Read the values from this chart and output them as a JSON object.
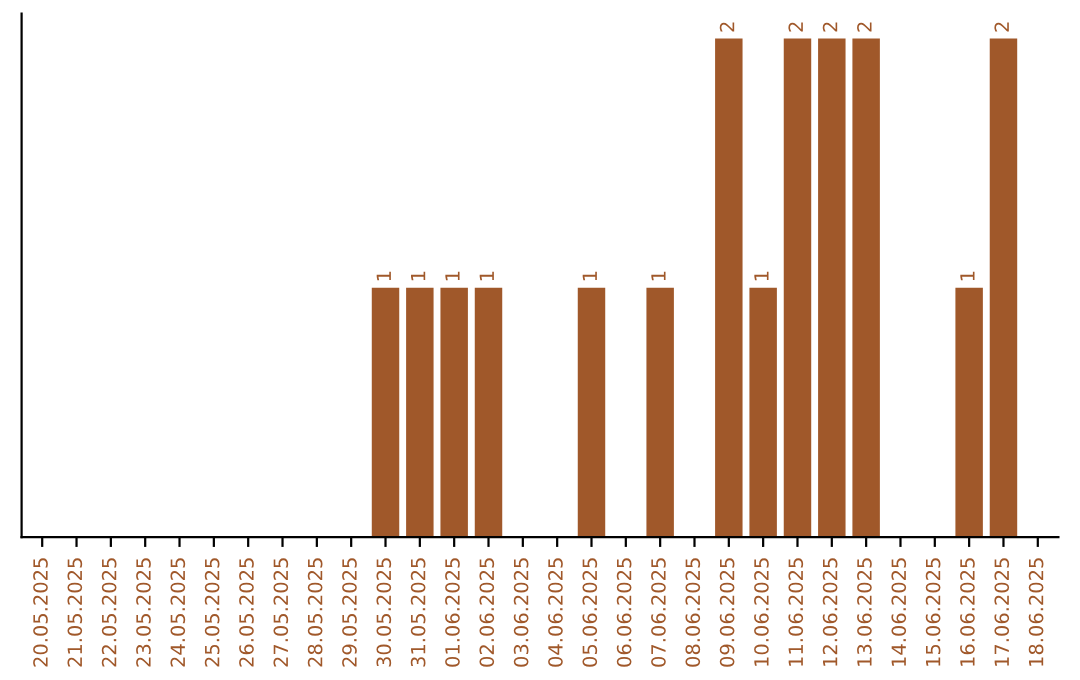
{
  "chart_data": {
    "type": "bar",
    "categories": [
      "20.05.2025",
      "21.05.2025",
      "22.05.2025",
      "23.05.2025",
      "24.05.2025",
      "25.05.2025",
      "26.05.2025",
      "27.05.2025",
      "28.05.2025",
      "29.05.2025",
      "30.05.2025",
      "31.05.2025",
      "01.06.2025",
      "02.06.2025",
      "03.06.2025",
      "04.06.2025",
      "05.06.2025",
      "06.06.2025",
      "07.06.2025",
      "08.06.2025",
      "09.06.2025",
      "10.06.2025",
      "11.06.2025",
      "12.06.2025",
      "13.06.2025",
      "14.06.2025",
      "15.06.2025",
      "16.06.2025",
      "17.06.2025",
      "18.06.2025"
    ],
    "values": [
      0,
      0,
      0,
      0,
      0,
      0,
      0,
      0,
      0,
      0,
      1,
      1,
      1,
      1,
      0,
      0,
      1,
      0,
      1,
      0,
      2,
      1,
      2,
      2,
      2,
      0,
      0,
      1,
      2,
      0
    ],
    "value_labels": [
      null,
      null,
      null,
      null,
      null,
      null,
      null,
      null,
      null,
      null,
      "1",
      "1",
      "1",
      "1",
      null,
      null,
      "1",
      null,
      "1",
      null,
      "2",
      "1",
      "2",
      "2",
      "2",
      null,
      null,
      "1",
      "2",
      null
    ],
    "color": "#a0582a",
    "tick_labels": "x",
    "grid": false,
    "legend": false
  }
}
